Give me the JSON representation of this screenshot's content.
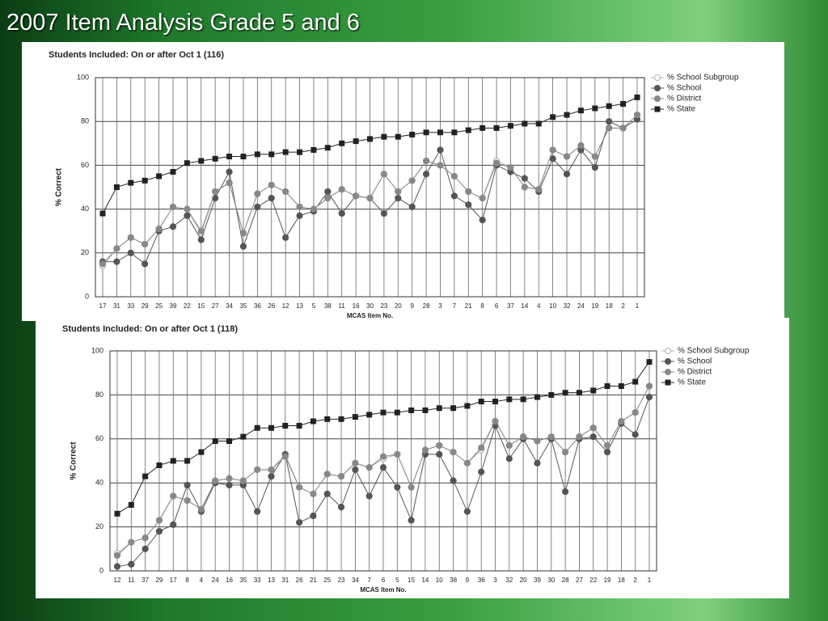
{
  "title": "2007 Item Analysis Grade 5 and 6",
  "chart_data": [
    {
      "type": "line",
      "title": "Students Included: On or after Oct 1 (116)",
      "y_label": "% Correct",
      "x_label": "MCAS Item No.",
      "categories": [
        "17",
        "31",
        "33",
        "29",
        "25",
        "39",
        "22",
        "15",
        "27",
        "34",
        "35",
        "36",
        "26",
        "12",
        "13",
        "5",
        "38",
        "11",
        "16",
        "30",
        "23",
        "20",
        "9",
        "28",
        "3",
        "7",
        "21",
        "8",
        "6",
        "37",
        "14",
        "4",
        "10",
        "32",
        "24",
        "19",
        "18",
        "2",
        "1"
      ],
      "ylim": [
        0,
        100
      ],
      "yticks": [
        0,
        20,
        40,
        60,
        80,
        100
      ],
      "grid": true,
      "legend": "right",
      "series": [
        {
          "name": "% School Subgroup",
          "color": "#b0b0b0",
          "values": [
            14,
            22,
            27,
            24,
            31,
            41,
            40,
            29,
            48,
            52,
            29,
            47,
            51,
            48,
            41,
            40,
            45,
            49,
            46,
            45,
            56,
            48,
            53,
            62,
            60,
            55,
            48,
            45,
            62,
            59,
            50,
            49,
            67,
            64,
            69,
            64,
            77,
            77,
            83
          ]
        },
        {
          "name": "% School",
          "color": "#555555",
          "values": [
            16,
            16,
            20,
            15,
            30,
            32,
            37,
            26,
            45,
            57,
            23,
            41,
            45,
            27,
            37,
            39,
            48,
            38,
            46,
            45,
            38,
            45,
            41,
            56,
            67,
            46,
            42,
            35,
            60,
            57,
            54,
            48,
            63,
            56,
            67,
            59,
            80,
            77,
            81
          ]
        },
        {
          "name": "% District",
          "color": "#888888",
          "values": [
            15,
            22,
            27,
            24,
            31,
            41,
            40,
            30,
            48,
            52,
            29,
            47,
            51,
            48,
            41,
            40,
            45,
            49,
            46,
            45,
            56,
            48,
            53,
            62,
            60,
            55,
            48,
            45,
            61,
            59,
            50,
            49,
            67,
            64,
            69,
            64,
            77,
            77,
            83
          ]
        },
        {
          "name": "% State",
          "color": "#222222",
          "values": [
            38,
            50,
            52,
            53,
            55,
            57,
            61,
            62,
            63,
            64,
            64,
            65,
            65,
            66,
            66,
            67,
            68,
            70,
            71,
            72,
            73,
            73,
            74,
            75,
            75,
            75,
            76,
            77,
            77,
            78,
            79,
            79,
            82,
            83,
            85,
            86,
            87,
            88,
            91
          ]
        }
      ]
    },
    {
      "type": "line",
      "title": "Students Included: On or after Oct 1 (118)",
      "y_label": "% Correct",
      "x_label": "MCAS Item No.",
      "categories": [
        "12",
        "11",
        "37",
        "29",
        "17",
        "8",
        "4",
        "24",
        "16",
        "35",
        "33",
        "13",
        "31",
        "26",
        "21",
        "25",
        "23",
        "34",
        "7",
        "6",
        "5",
        "15",
        "14",
        "10",
        "38",
        "9",
        "36",
        "3",
        "32",
        "20",
        "39",
        "30",
        "28",
        "27",
        "22",
        "19",
        "18",
        "2",
        "1"
      ],
      "ylim": [
        0,
        100
      ],
      "yticks": [
        0,
        20,
        40,
        60,
        80,
        100
      ],
      "grid": true,
      "legend": "right",
      "series": [
        {
          "name": "% School Subgroup",
          "color": "#b0b0b0",
          "values": [
            8,
            13,
            15,
            23,
            34,
            32,
            28,
            41,
            42,
            41,
            46,
            46,
            53,
            38,
            35,
            44,
            43,
            49,
            47,
            51,
            53,
            38,
            55,
            57,
            54,
            49,
            55,
            68,
            57,
            61,
            59,
            61,
            54,
            61,
            65,
            57,
            68,
            72,
            84
          ]
        },
        {
          "name": "% School",
          "color": "#555555",
          "values": [
            2,
            3,
            10,
            18,
            21,
            39,
            27,
            40,
            39,
            39,
            27,
            43,
            53,
            22,
            25,
            35,
            29,
            46,
            34,
            47,
            38,
            23,
            53,
            53,
            41,
            27,
            45,
            66,
            51,
            60,
            49,
            60,
            36,
            60,
            61,
            54,
            67,
            62,
            79
          ]
        },
        {
          "name": "% District",
          "color": "#888888",
          "values": [
            7,
            13,
            15,
            23,
            34,
            32,
            28,
            41,
            42,
            41,
            46,
            46,
            52,
            38,
            35,
            44,
            43,
            49,
            47,
            52,
            53,
            38,
            55,
            57,
            54,
            49,
            56,
            68,
            57,
            61,
            59,
            61,
            54,
            61,
            65,
            57,
            68,
            72,
            84
          ]
        },
        {
          "name": "% State",
          "color": "#222222",
          "values": [
            26,
            30,
            43,
            48,
            50,
            50,
            54,
            59,
            59,
            61,
            65,
            65,
            66,
            66,
            68,
            69,
            69,
            70,
            71,
            72,
            72,
            73,
            73,
            74,
            74,
            75,
            77,
            77,
            78,
            78,
            79,
            80,
            81,
            81,
            82,
            84,
            84,
            86,
            95
          ]
        }
      ]
    }
  ]
}
